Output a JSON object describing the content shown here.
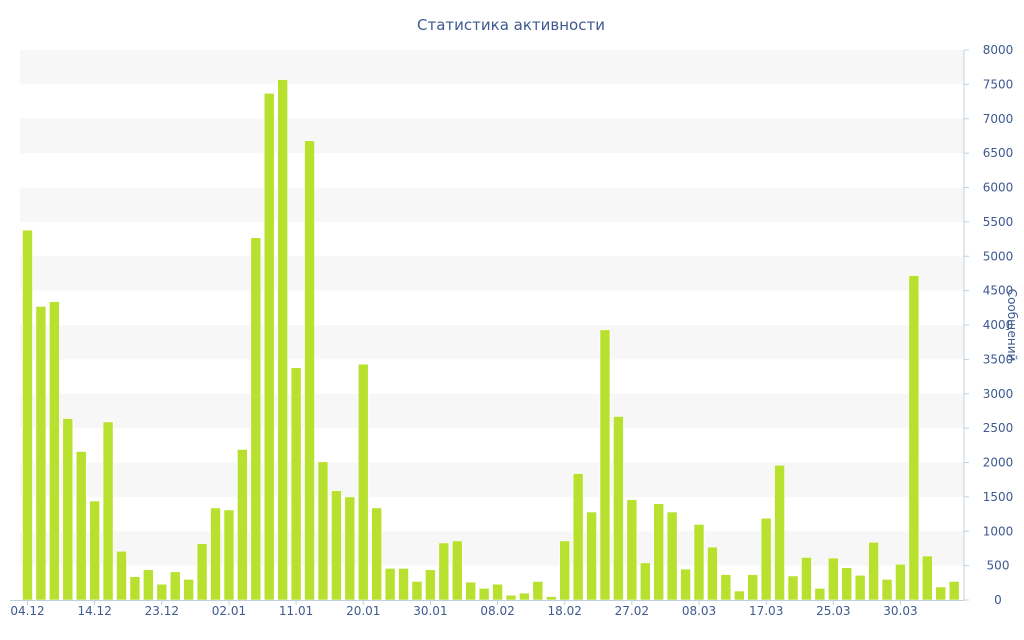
{
  "chart_data": {
    "type": "bar",
    "title": "Статистика активности",
    "xlabel": "",
    "ylabel": "Сообщений",
    "ylim": [
      0,
      8000
    ],
    "y_ticks": [
      0,
      500,
      1000,
      1500,
      2000,
      2500,
      3000,
      3500,
      4000,
      4500,
      5000,
      5500,
      6000,
      6500,
      7000,
      7500,
      8000
    ],
    "y_axis_position": "right",
    "bar_color": "#B8E02E",
    "band_color": "#F7F7F7",
    "text_color": "#3E5A8F",
    "x_tick_labels": [
      {
        "index": 0,
        "label": "04.12"
      },
      {
        "index": 5,
        "label": "14.12"
      },
      {
        "index": 10,
        "label": "23.12"
      },
      {
        "index": 15,
        "label": "02.01"
      },
      {
        "index": 20,
        "label": "11.01"
      },
      {
        "index": 25,
        "label": "20.01"
      },
      {
        "index": 30,
        "label": "30.01"
      },
      {
        "index": 35,
        "label": "08.02"
      },
      {
        "index": 40,
        "label": "18.02"
      },
      {
        "index": 45,
        "label": "27.02"
      },
      {
        "index": 50,
        "label": "08.03"
      },
      {
        "index": 55,
        "label": "17.03"
      },
      {
        "index": 60,
        "label": "25.03"
      },
      {
        "index": 65,
        "label": "30.03"
      }
    ],
    "values": [
      5380,
      4270,
      4340,
      2640,
      2160,
      1440,
      2590,
      710,
      340,
      440,
      230,
      410,
      300,
      820,
      1340,
      1310,
      2190,
      5270,
      7370,
      7570,
      3380,
      6680,
      2010,
      1590,
      1500,
      3430,
      1340,
      460,
      460,
      270,
      440,
      830,
      860,
      260,
      170,
      230,
      70,
      100,
      270,
      50,
      860,
      1840,
      1280,
      3930,
      2670,
      1460,
      540,
      1400,
      1280,
      450,
      1100,
      770,
      370,
      130,
      370,
      1190,
      1960,
      350,
      620,
      170,
      610,
      470,
      360,
      840,
      300,
      520,
      4720,
      640,
      190,
      270
    ]
  }
}
